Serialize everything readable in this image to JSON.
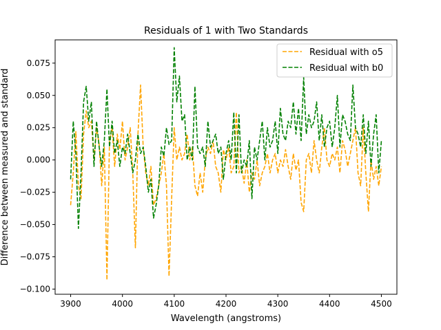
{
  "chart_data": {
    "type": "line",
    "title": "Residuals of 1 with Two Standards",
    "xlabel": "Wavelength (angstroms)",
    "ylabel": "Difference between measured and standard",
    "xlim": [
      3870,
      4530
    ],
    "ylim": [
      -0.104,
      0.093
    ],
    "x_ticks": [
      3900,
      4000,
      4100,
      4200,
      4300,
      4400,
      4500
    ],
    "x_tick_labels": [
      "3900",
      "4000",
      "4100",
      "4200",
      "4300",
      "4400",
      "4500"
    ],
    "y_ticks": [
      -0.1,
      -0.075,
      -0.05,
      -0.025,
      0.0,
      0.025,
      0.05,
      0.075
    ],
    "y_tick_labels": [
      "−0.100",
      "−0.075",
      "−0.050",
      "−0.025",
      "0.000",
      "0.025",
      "0.050",
      "0.075"
    ],
    "grid": false,
    "legend_position": "top-right",
    "line_style": "dashed",
    "series": [
      {
        "name": "Residual with o5",
        "color": "#ffa500",
        "x": [
          3900,
          3905,
          3910,
          3915,
          3920,
          3925,
          3930,
          3935,
          3940,
          3945,
          3950,
          3955,
          3960,
          3965,
          3970,
          3975,
          3980,
          3985,
          3990,
          3995,
          4000,
          4005,
          4010,
          4015,
          4020,
          4025,
          4030,
          4035,
          4040,
          4045,
          4050,
          4055,
          4060,
          4065,
          4070,
          4075,
          4080,
          4085,
          4090,
          4095,
          4100,
          4105,
          4110,
          4115,
          4120,
          4125,
          4130,
          4135,
          4140,
          4145,
          4150,
          4155,
          4160,
          4165,
          4170,
          4175,
          4180,
          4185,
          4190,
          4195,
          4200,
          4205,
          4210,
          4215,
          4220,
          4225,
          4230,
          4235,
          4240,
          4245,
          4250,
          4255,
          4260,
          4265,
          4270,
          4275,
          4280,
          4285,
          4290,
          4295,
          4300,
          4305,
          4310,
          4315,
          4320,
          4325,
          4330,
          4335,
          4340,
          4345,
          4350,
          4355,
          4360,
          4365,
          4370,
          4375,
          4380,
          4385,
          4390,
          4395,
          4400,
          4405,
          4410,
          4415,
          4420,
          4425,
          4430,
          4435,
          4440,
          4445,
          4450,
          4455,
          4460,
          4465,
          4470,
          4475,
          4480,
          4485,
          4490,
          4495,
          4500
        ],
        "values": [
          -0.035,
          -0.01,
          0.022,
          -0.02,
          -0.03,
          0.02,
          0.038,
          0.025,
          0.03,
          0.0,
          0.025,
          0.012,
          -0.02,
          0.01,
          -0.093,
          0.015,
          0.025,
          -0.005,
          0.02,
          0.008,
          0.03,
          0.0,
          0.01,
          0.025,
          -0.01,
          -0.068,
          0.02,
          0.058,
          0.01,
          -0.01,
          -0.02,
          -0.005,
          -0.035,
          -0.03,
          -0.02,
          -0.01,
          0.005,
          -0.02,
          -0.09,
          -0.03,
          0.025,
          0.0,
          0.01,
          0.0,
          0.005,
          0.02,
          0.0,
          0.01,
          -0.02,
          -0.028,
          -0.01,
          -0.025,
          0.0,
          0.01,
          0.005,
          0.015,
          -0.005,
          -0.01,
          -0.025,
          0.008,
          0.0,
          0.01,
          -0.01,
          -0.005,
          0.037,
          -0.01,
          -0.005,
          -0.018,
          0.0,
          -0.025,
          -0.01,
          -0.015,
          0.0,
          -0.02,
          -0.01,
          -0.005,
          0.005,
          -0.01,
          0.0,
          0.005,
          -0.01,
          0.0,
          -0.005,
          0.008,
          -0.005,
          -0.015,
          0.005,
          -0.008,
          0.0,
          -0.033,
          -0.04,
          0.0,
          0.005,
          -0.01,
          0.015,
          0.0,
          -0.01,
          0.01,
          0.025,
          0.0,
          -0.005,
          0.005,
          0.0,
          0.01,
          -0.01,
          0.015,
          0.008,
          -0.005,
          0.005,
          0.015,
          0.025,
          -0.01,
          -0.02,
          0.025,
          -0.01,
          -0.04,
          0.0,
          -0.015,
          -0.005,
          -0.02,
          -0.005
        ]
      },
      {
        "name": "Residual with b0",
        "color": "#008000",
        "x": [
          3900,
          3905,
          3910,
          3915,
          3920,
          3925,
          3930,
          3935,
          3940,
          3945,
          3950,
          3955,
          3960,
          3965,
          3970,
          3975,
          3980,
          3985,
          3990,
          3995,
          4000,
          4005,
          4010,
          4015,
          4020,
          4025,
          4030,
          4035,
          4040,
          4045,
          4050,
          4055,
          4060,
          4065,
          4070,
          4075,
          4080,
          4085,
          4090,
          4095,
          4100,
          4105,
          4110,
          4115,
          4120,
          4125,
          4130,
          4135,
          4140,
          4145,
          4150,
          4155,
          4160,
          4165,
          4170,
          4175,
          4180,
          4185,
          4190,
          4195,
          4200,
          4205,
          4210,
          4215,
          4220,
          4225,
          4230,
          4235,
          4240,
          4245,
          4250,
          4255,
          4260,
          4265,
          4270,
          4275,
          4280,
          4285,
          4290,
          4295,
          4300,
          4305,
          4310,
          4315,
          4320,
          4325,
          4330,
          4335,
          4340,
          4345,
          4350,
          4355,
          4360,
          4365,
          4370,
          4375,
          4380,
          4385,
          4390,
          4395,
          4400,
          4405,
          4410,
          4415,
          4420,
          4425,
          4430,
          4435,
          4440,
          4445,
          4450,
          4455,
          4460,
          4465,
          4470,
          4475,
          4480,
          4485,
          4490,
          4495,
          4500
        ],
        "values": [
          -0.015,
          0.03,
          0.005,
          -0.053,
          -0.01,
          0.045,
          0.057,
          0.03,
          0.045,
          -0.005,
          0.03,
          0.01,
          -0.005,
          0.015,
          0.055,
          0.01,
          0.03,
          0.005,
          0.015,
          -0.005,
          0.01,
          0.005,
          0.02,
          0.005,
          -0.01,
          0.0,
          0.02,
          0.005,
          0.01,
          -0.005,
          -0.025,
          -0.015,
          -0.045,
          -0.035,
          -0.02,
          0.01,
          0.003,
          0.025,
          0.012,
          0.015,
          0.087,
          0.045,
          0.065,
          0.03,
          0.035,
          0.0,
          0.01,
          0.0,
          0.057,
          0.01,
          0.005,
          0.01,
          -0.005,
          0.03,
          0.01,
          0.015,
          0.02,
          0.005,
          0.01,
          -0.015,
          0.005,
          0.015,
          0.0,
          0.037,
          -0.01,
          0.035,
          -0.01,
          0.0,
          -0.005,
          0.015,
          -0.03,
          0.01,
          0.0,
          0.015,
          0.03,
          0.0,
          0.025,
          0.01,
          0.015,
          0.03,
          0.005,
          0.04,
          0.02,
          0.015,
          0.03,
          0.025,
          0.045,
          0.02,
          0.04,
          0.015,
          0.064,
          0.02,
          0.035,
          0.025,
          0.03,
          0.045,
          0.015,
          0.035,
          0.01,
          0.025,
          0.03,
          0.01,
          0.025,
          0.05,
          0.01,
          0.035,
          0.03,
          0.02,
          0.015,
          0.058,
          0.025,
          0.02,
          0.01,
          0.035,
          0.005,
          0.03,
          -0.005,
          0.02,
          0.035,
          -0.01,
          0.015
        ]
      }
    ]
  }
}
